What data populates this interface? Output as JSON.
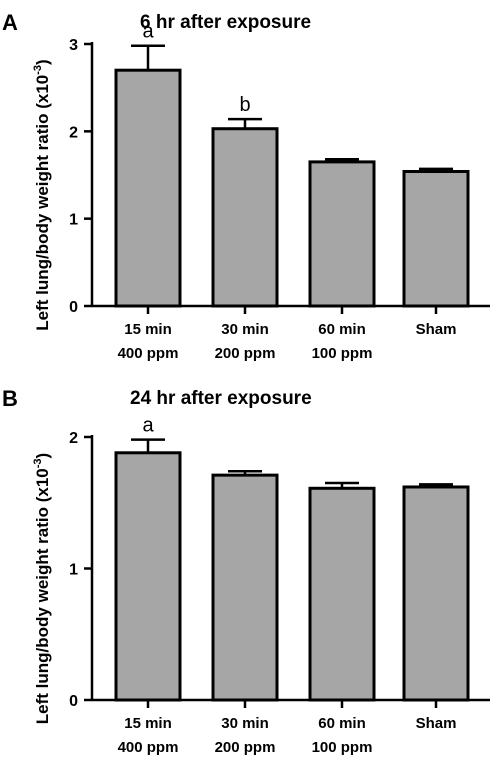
{
  "chart_data": [
    {
      "type": "bar",
      "panel": "A",
      "title": "6 hr after exposure",
      "ylabel": "Left lung/body weight ratio",
      "ylabel_unit": "(x10",
      "ylabel_exp": "-3",
      "ylabel_close": ")",
      "ylim": [
        0,
        3
      ],
      "yticks": [
        "0",
        "1",
        "2",
        "3"
      ],
      "categories": [
        {
          "line1": "15 min",
          "line2": "400 ppm"
        },
        {
          "line1": "30 min",
          "line2": "200 ppm"
        },
        {
          "line1": "60 min",
          "line2": "100 ppm"
        },
        {
          "line1": "Sham",
          "line2": ""
        }
      ],
      "values": [
        2.7,
        2.03,
        1.65,
        1.54
      ],
      "errors": [
        0.28,
        0.11,
        0.03,
        0.03
      ],
      "annotations": [
        "a",
        "b",
        "",
        ""
      ]
    },
    {
      "type": "bar",
      "panel": "B",
      "title": "24 hr after exposure",
      "ylabel": "Left lung/body weight ratio",
      "ylabel_unit": "(x10",
      "ylabel_exp": "-3",
      "ylabel_close": ")",
      "ylim": [
        0,
        2
      ],
      "yticks": [
        "0",
        "1",
        "2"
      ],
      "categories": [
        {
          "line1": "15 min",
          "line2": "400 ppm"
        },
        {
          "line1": "30 min",
          "line2": "200 ppm"
        },
        {
          "line1": "60 min",
          "line2": "100 ppm"
        },
        {
          "line1": "Sham",
          "line2": ""
        }
      ],
      "values": [
        1.88,
        1.71,
        1.61,
        1.62
      ],
      "errors": [
        0.1,
        0.03,
        0.04,
        0.02
      ],
      "annotations": [
        "a",
        "",
        "",
        ""
      ]
    }
  ]
}
